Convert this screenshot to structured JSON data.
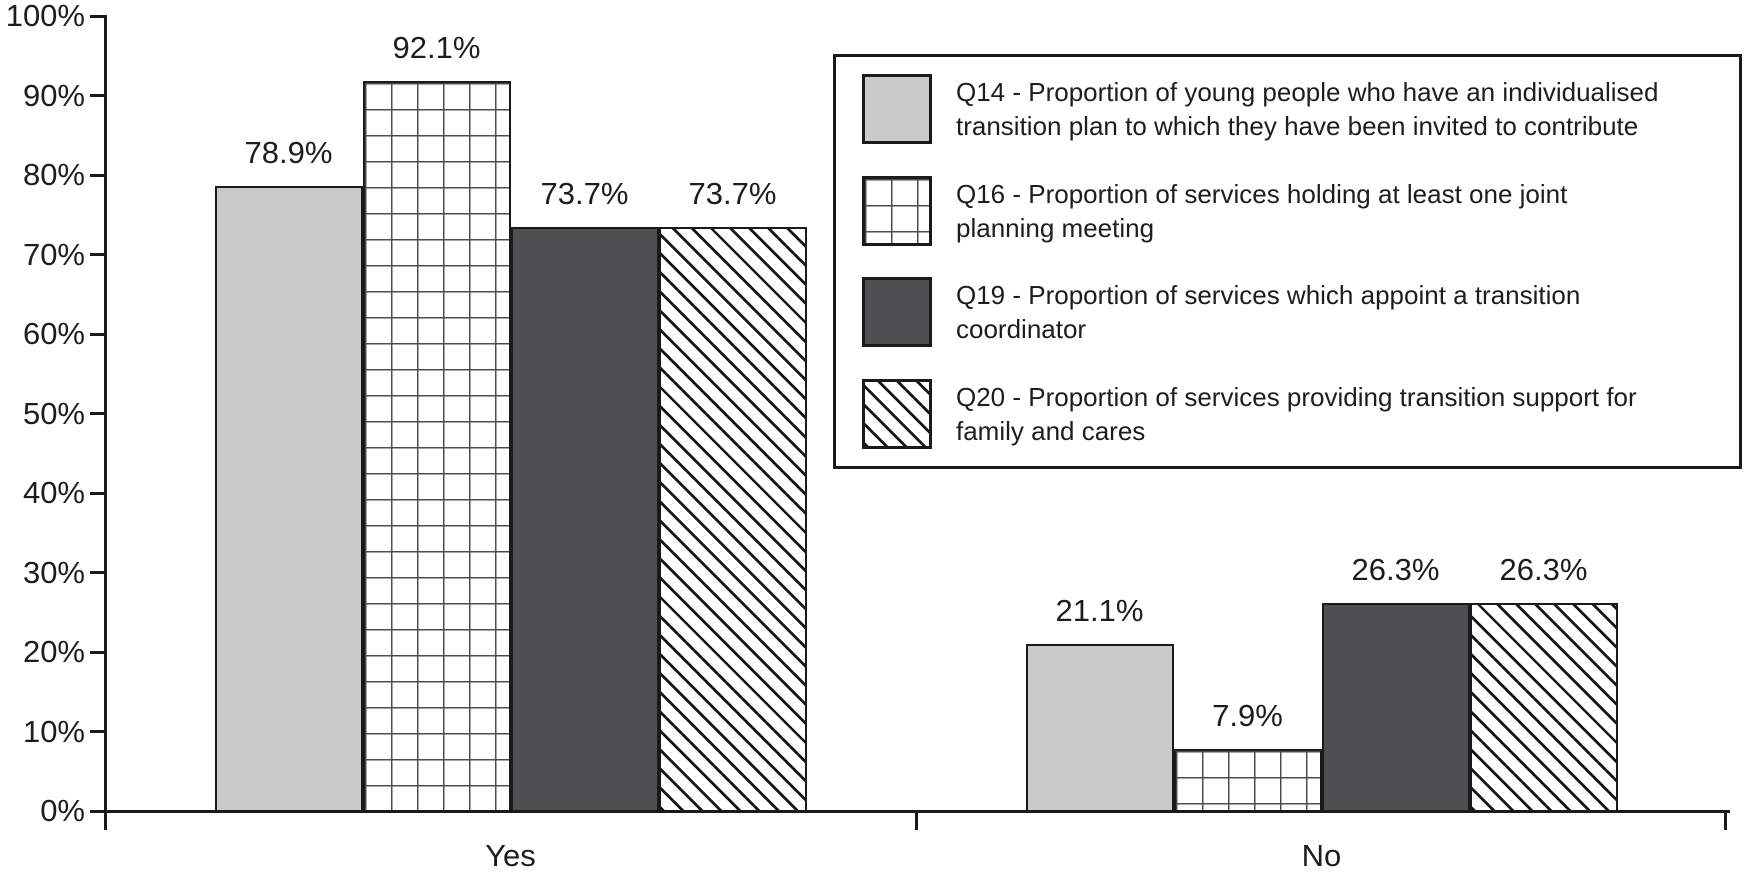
{
  "chart_data": {
    "type": "bar",
    "categories": [
      "Yes",
      "No"
    ],
    "series": [
      {
        "name": "Q14",
        "legend_label": "Q14 - Proportion of young people who have an individualised\ntransition plan to which they have been invited to contribute",
        "pattern": "solid-light",
        "color": "#cacaca",
        "values": [
          78.9,
          21.1
        ],
        "value_labels": [
          "78.9%",
          "21.1%"
        ]
      },
      {
        "name": "Q16",
        "legend_label": "Q16 - Proportion of services holding at least one joint\nplanning meeting",
        "pattern": "grid",
        "color": "#ffffff",
        "values": [
          92.1,
          7.9
        ],
        "value_labels": [
          "92.1%",
          "7.9%"
        ]
      },
      {
        "name": "Q19",
        "legend_label": "Q19 - Proportion of services which appoint a transition\ncoordinator",
        "pattern": "solid-dark",
        "color": "#4f4f51",
        "values": [
          73.7,
          26.3
        ],
        "value_labels": [
          "73.7%",
          "26.3%"
        ]
      },
      {
        "name": "Q20",
        "legend_label": "Q20 - Proportion of services providing transition support for\nfamily and cares",
        "pattern": "hatch",
        "color": "#ffffff",
        "values": [
          73.7,
          26.3
        ],
        "value_labels": [
          "73.7%",
          "26.3%"
        ]
      }
    ],
    "y_axis": {
      "tick_labels": [
        "100%",
        "90%",
        "80%",
        "70%",
        "60%",
        "50%",
        "40%",
        "30%",
        "20%",
        "10%",
        "0%"
      ],
      "min": 0,
      "max": 100,
      "unit": "%"
    },
    "x_axis": {
      "category_labels": [
        "Yes",
        "No"
      ]
    },
    "title": "",
    "grid": false,
    "legend_position": "top-right",
    "line_color": "#1a1a1a"
  }
}
